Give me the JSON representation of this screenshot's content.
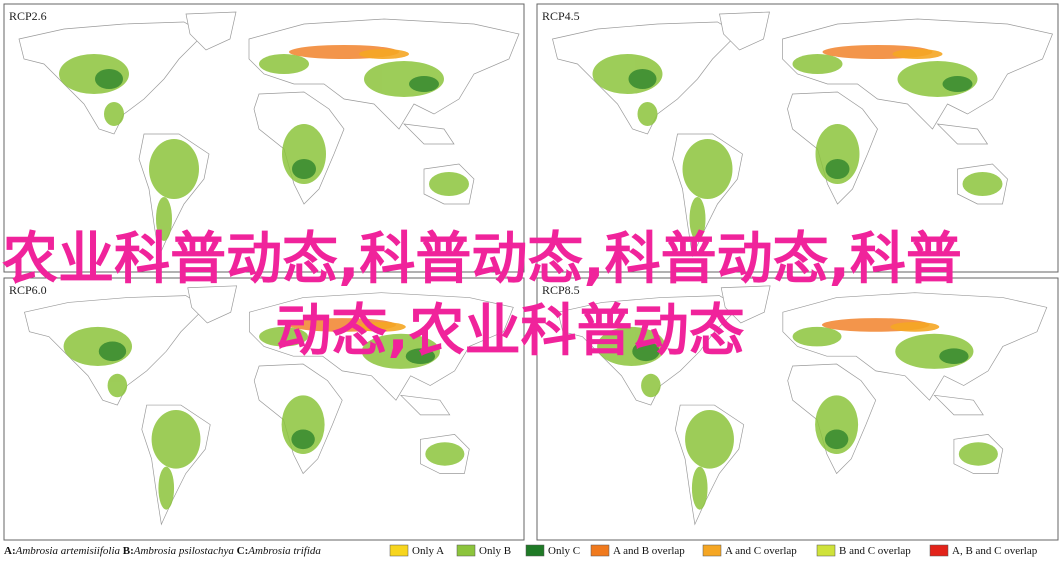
{
  "panels": [
    {
      "label": "RCP2.6"
    },
    {
      "label": "RCP4.5"
    },
    {
      "label": "RCP6.0"
    },
    {
      "label": "RCP8.5"
    }
  ],
  "overlay_title": {
    "lines": [
      "农业科普动态,科普动态,科普动态,科普",
      "动态,农业科普动态"
    ],
    "color": "#f0239b"
  },
  "legend": {
    "species": [
      {
        "key": "A:",
        "name": "Ambrosia artemisiifolia"
      },
      {
        "key": "B:",
        "name": "Ambrosia psilostachya"
      },
      {
        "key": "C:",
        "name": "Ambrosia trifida"
      }
    ],
    "items": [
      {
        "label": "Only A",
        "color": "#f7d51d"
      },
      {
        "label": "Only B",
        "color": "#8cc43c"
      },
      {
        "label": "Only C",
        "color": "#1f7a26"
      },
      {
        "label": "A and B overlap",
        "color": "#f07a1e"
      },
      {
        "label": "A and C overlap",
        "color": "#f5a623"
      },
      {
        "label": "B and C overlap",
        "color": "#cfe23a"
      },
      {
        "label": "A, B and C overlap",
        "color": "#e2231a"
      }
    ]
  }
}
